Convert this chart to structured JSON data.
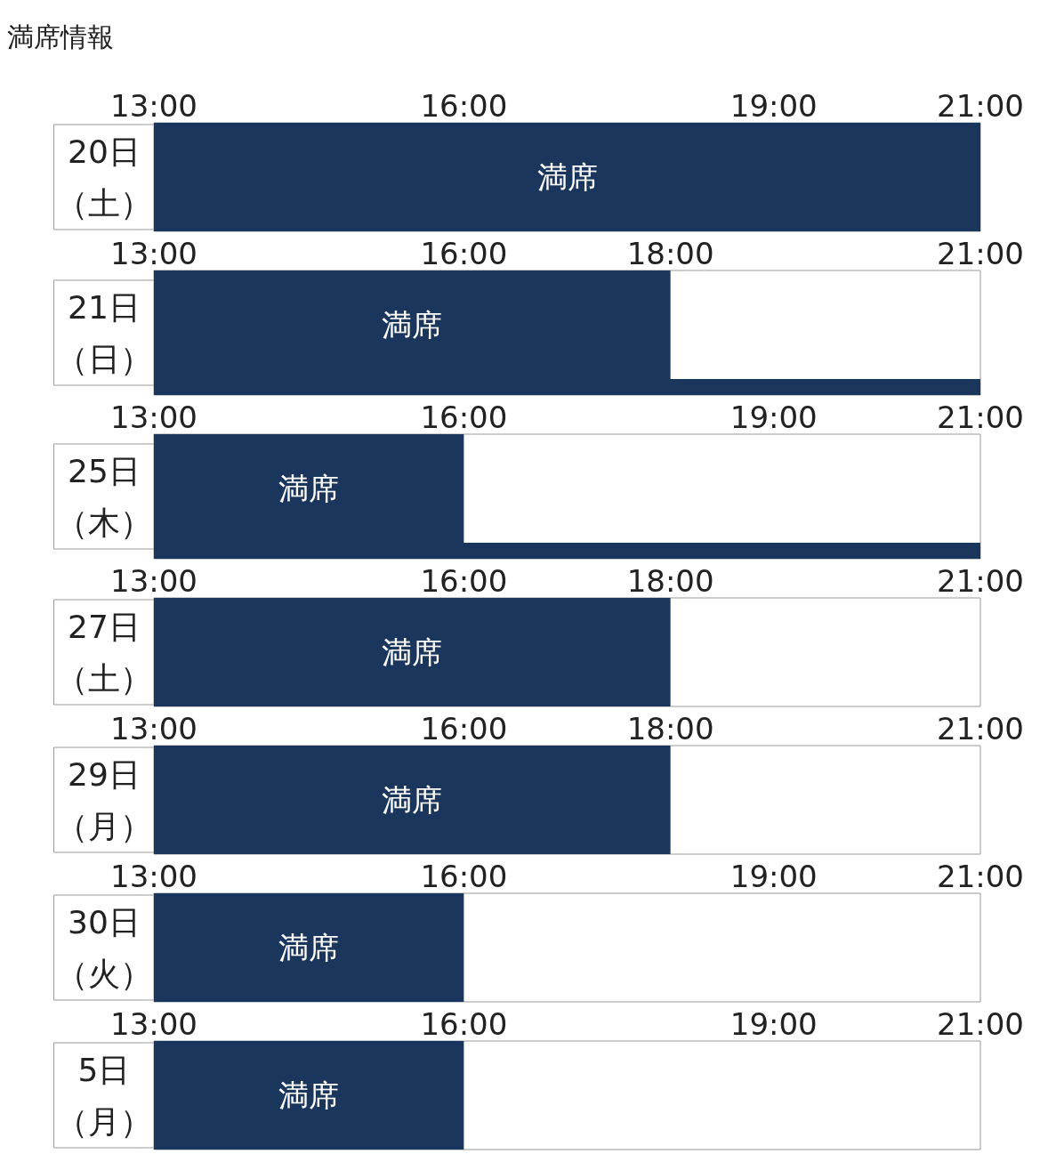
{
  "chart_data": [
    {
      "type": "bar",
      "title": "満席情報",
      "orientation": "horizontal",
      "categories": [
        "20日（土）"
      ],
      "base": [
        13
      ],
      "values": [
        8
      ],
      "value_labels": [
        "満席"
      ],
      "color": "#1b365d",
      "xlim": [
        13,
        21
      ],
      "xticks": [
        {
          "value": 13,
          "label": "13:00"
        },
        {
          "value": 16,
          "label": "16:00"
        },
        {
          "value": 19,
          "label": "19:00"
        },
        {
          "value": 21,
          "label": "21:00"
        }
      ]
    },
    {
      "type": "bar",
      "orientation": "horizontal",
      "categories": [
        "21日（日）"
      ],
      "series": [
        {
          "color": "#1b365d",
          "base": [
            13
          ],
          "values": [
            5
          ],
          "value_labels": [
            "満席"
          ]
        },
        {
          "color": "#1b365d",
          "base": [
            13
          ],
          "values": [
            8
          ]
        }
      ],
      "xlim": [
        13,
        21
      ],
      "xticks": [
        {
          "value": 13,
          "label": "13:00"
        },
        {
          "value": 16,
          "label": "16:00"
        },
        {
          "value": 18,
          "label": "18:00"
        },
        {
          "value": 21,
          "label": "21:00"
        }
      ]
    },
    {
      "type": "bar",
      "orientation": "horizontal",
      "categories": [
        "25日（木）"
      ],
      "series": [
        {
          "color": "#1b365d",
          "base": [
            13
          ],
          "values": [
            3
          ],
          "value_labels": [
            "満席"
          ]
        },
        {
          "color": "#1b365d",
          "base": [
            13
          ],
          "values": [
            8
          ]
        }
      ],
      "xlim": [
        13,
        21
      ],
      "xticks": [
        {
          "value": 13,
          "label": "13:00"
        },
        {
          "value": 16,
          "label": "16:00"
        },
        {
          "value": 19,
          "label": "19:00"
        },
        {
          "value": 21,
          "label": "21:00"
        }
      ]
    },
    {
      "type": "bar",
      "orientation": "horizontal",
      "categories": [
        "27日（土）"
      ],
      "base": [
        13
      ],
      "values": [
        5
      ],
      "value_labels": [
        "満席"
      ],
      "color": "#1b365d",
      "xlim": [
        13,
        21
      ],
      "xticks": [
        {
          "value": 13,
          "label": "13:00"
        },
        {
          "value": 16,
          "label": "16:00"
        },
        {
          "value": 18,
          "label": "18:00"
        },
        {
          "value": 21,
          "label": "21:00"
        }
      ]
    },
    {
      "type": "bar",
      "orientation": "horizontal",
      "categories": [
        "29日（月）"
      ],
      "base": [
        13
      ],
      "values": [
        5
      ],
      "value_labels": [
        "満席"
      ],
      "color": "#1b365d",
      "xlim": [
        13,
        21
      ],
      "xticks": [
        {
          "value": 13,
          "label": "13:00"
        },
        {
          "value": 16,
          "label": "16:00"
        },
        {
          "value": 18,
          "label": "18:00"
        },
        {
          "value": 21,
          "label": "21:00"
        }
      ]
    },
    {
      "type": "bar",
      "orientation": "horizontal",
      "categories": [
        "30日（火）"
      ],
      "base": [
        13
      ],
      "values": [
        3
      ],
      "value_labels": [
        "満席"
      ],
      "color": "#1b365d",
      "xlim": [
        13,
        21
      ],
      "xticks": [
        {
          "value": 13,
          "label": "13:00"
        },
        {
          "value": 16,
          "label": "16:00"
        },
        {
          "value": 19,
          "label": "19:00"
        },
        {
          "value": 21,
          "label": "21:00"
        }
      ]
    },
    {
      "type": "bar",
      "orientation": "horizontal",
      "categories": [
        "5日（月）"
      ],
      "base": [
        13
      ],
      "values": [
        3
      ],
      "value_labels": [
        "満席"
      ],
      "color": "#1b365d",
      "xlim": [
        13,
        21
      ],
      "xticks": [
        {
          "value": 13,
          "label": "13:00"
        },
        {
          "value": 16,
          "label": "16:00"
        },
        {
          "value": 19,
          "label": "19:00"
        },
        {
          "value": 21,
          "label": "21:00"
        }
      ]
    }
  ]
}
